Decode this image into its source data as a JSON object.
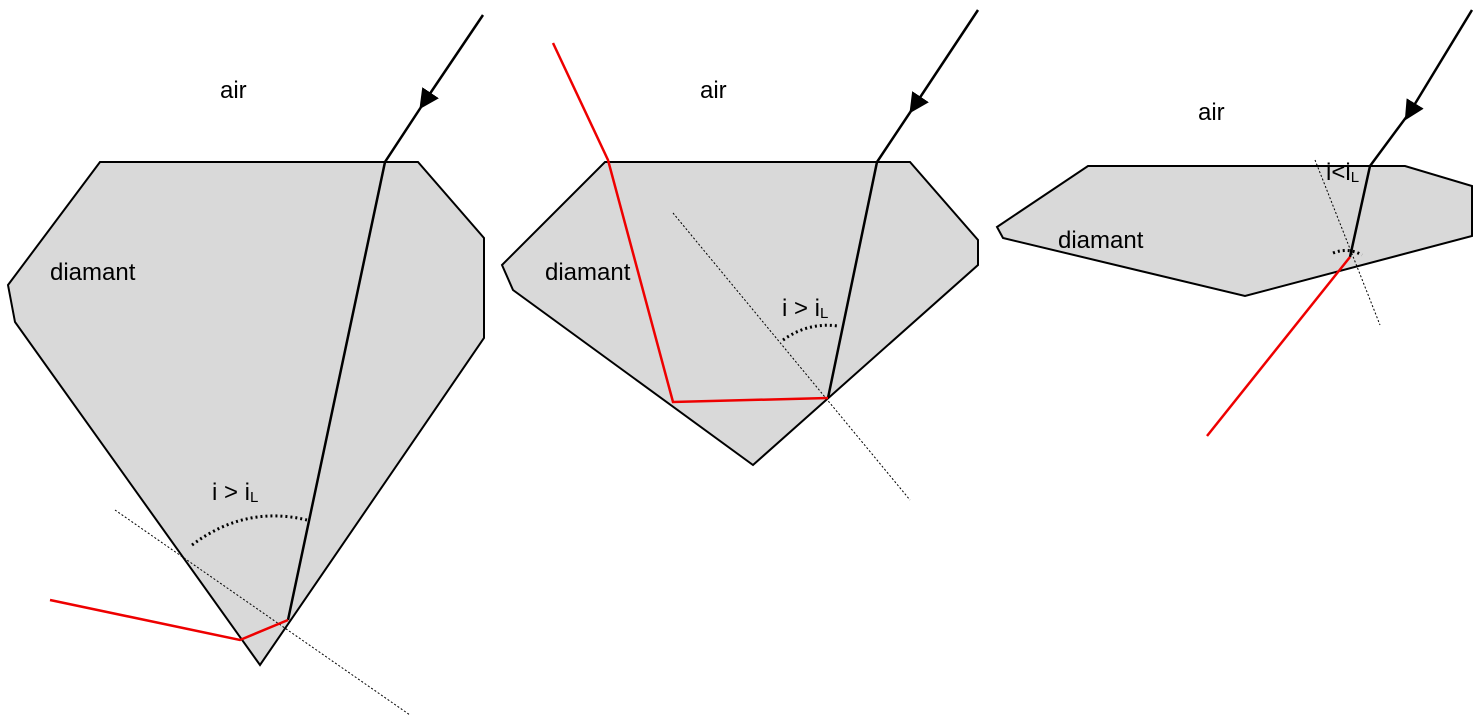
{
  "panels": [
    {
      "medium_outside": "air",
      "medium_inside": "diamant",
      "angle_label": {
        "text": "i > i",
        "sub": "L"
      }
    },
    {
      "medium_outside": "air",
      "medium_inside": "diamant",
      "angle_label": {
        "text": "i > i",
        "sub": "L"
      }
    },
    {
      "medium_outside": "air",
      "medium_inside": "diamant",
      "angle_label": {
        "text": "i<i",
        "sub": "L"
      }
    }
  ]
}
